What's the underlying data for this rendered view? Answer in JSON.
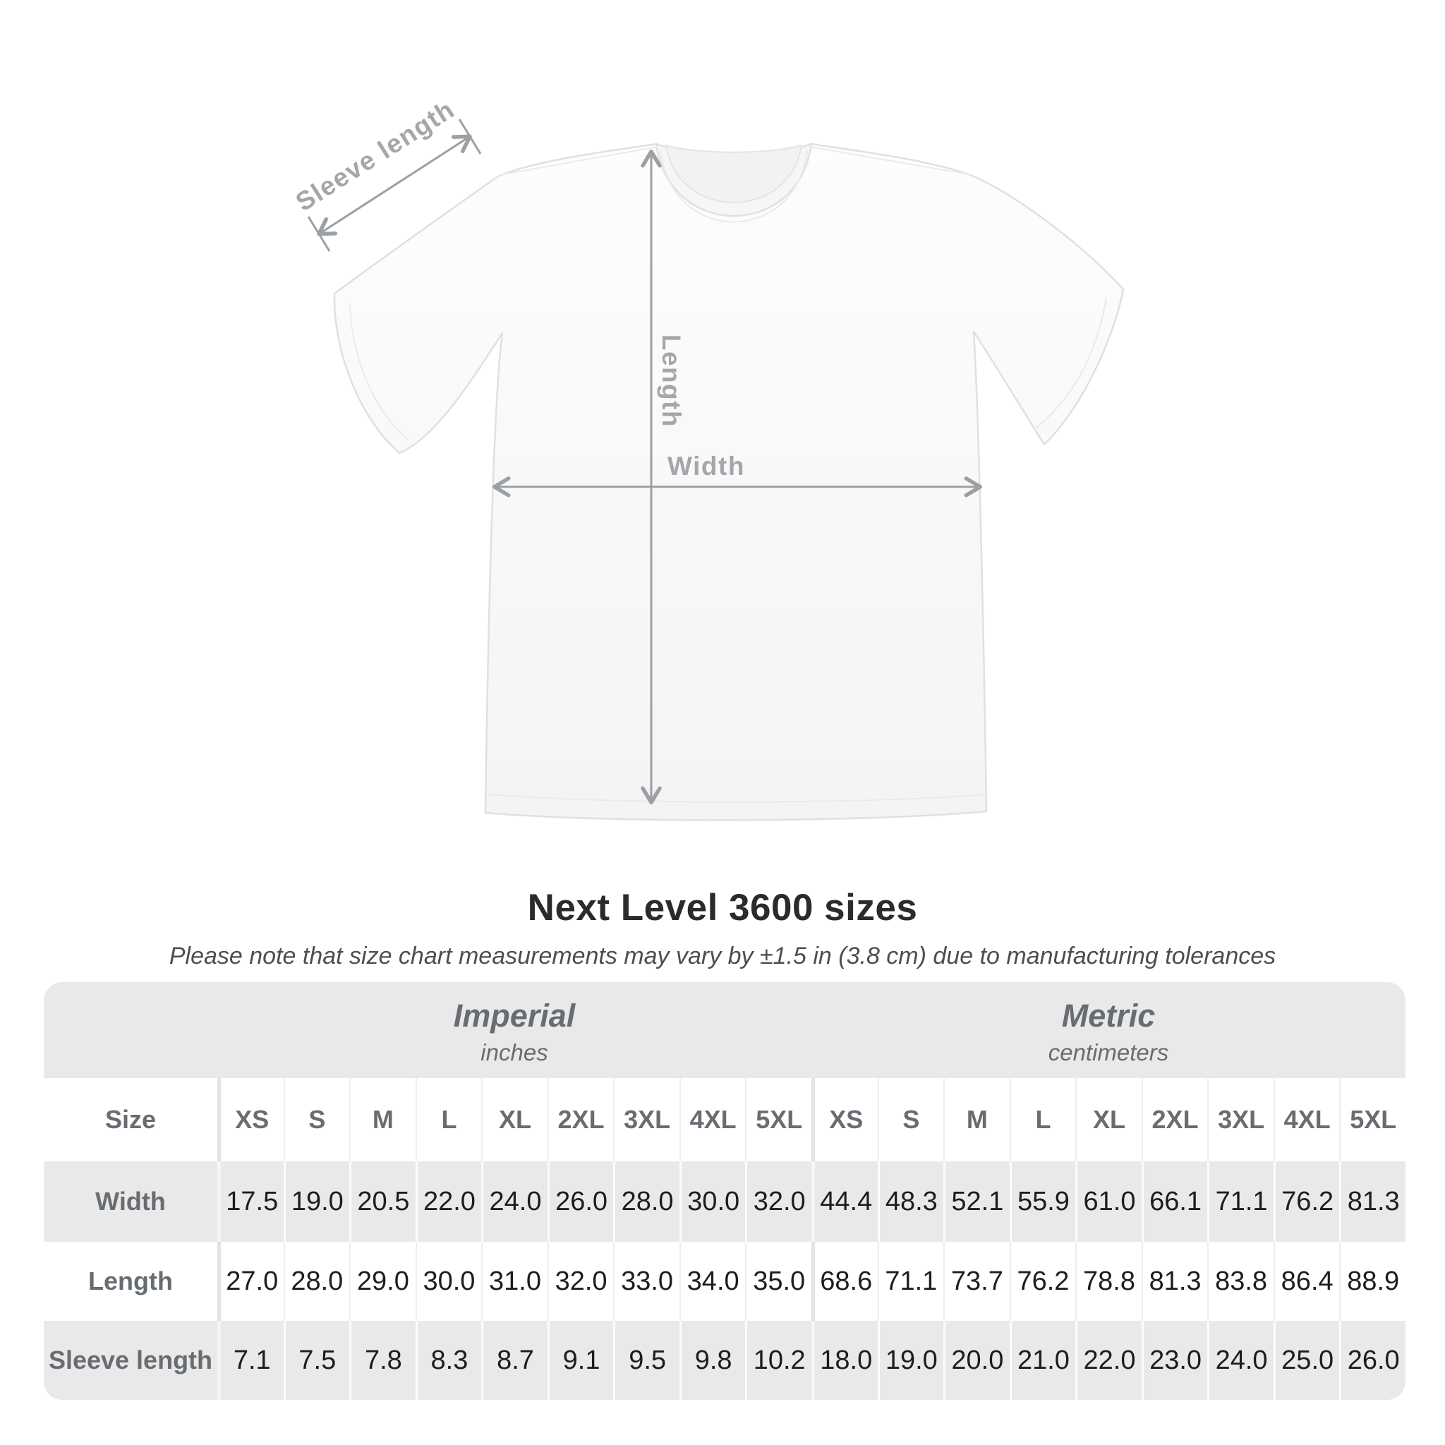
{
  "page": {
    "background": "#ffffff"
  },
  "diagram": {
    "labels": {
      "sleeve": "Sleeve length",
      "length": "Length",
      "width": "Width"
    },
    "arrow_color": "#9ca0a3",
    "label_color": "#a3a7aa",
    "shirt_fill": "#f9f9fa",
    "shirt_outline": "#dfe0e2"
  },
  "header": {
    "title": "Next Level 3600 sizes",
    "subtitle": "Please note that size chart measurements may vary by ±1.5 in (3.8 cm) due to manufacturing tolerances"
  },
  "chart_data": {
    "type": "table",
    "title": "Next Level 3600 sizes",
    "corner_label": "Size",
    "unit_groups": [
      {
        "label": "Imperial",
        "sublabel": "inches",
        "sizes": [
          "XS",
          "S",
          "M",
          "L",
          "XL",
          "2XL",
          "3XL",
          "4XL",
          "5XL"
        ]
      },
      {
        "label": "Metric",
        "sublabel": "centimeters",
        "sizes": [
          "XS",
          "S",
          "M",
          "L",
          "XL",
          "2XL",
          "3XL",
          "4XL",
          "5XL"
        ]
      }
    ],
    "measurements": [
      {
        "label": "Width",
        "imperial": [
          "17.5",
          "19.0",
          "20.5",
          "22.0",
          "24.0",
          "26.0",
          "28.0",
          "30.0",
          "32.0"
        ],
        "metric": [
          "44.4",
          "48.3",
          "52.1",
          "55.9",
          "61.0",
          "66.1",
          "71.1",
          "76.2",
          "81.3"
        ]
      },
      {
        "label": "Length",
        "imperial": [
          "27.0",
          "28.0",
          "29.0",
          "30.0",
          "31.0",
          "32.0",
          "33.0",
          "34.0",
          "35.0"
        ],
        "metric": [
          "68.6",
          "71.1",
          "73.7",
          "76.2",
          "78.8",
          "81.3",
          "83.8",
          "86.4",
          "88.9"
        ]
      },
      {
        "label": "Sleeve length",
        "imperial": [
          "7.1",
          "7.5",
          "7.8",
          "8.3",
          "8.7",
          "9.1",
          "9.5",
          "9.8",
          "10.2"
        ],
        "metric": [
          "18.0",
          "19.0",
          "20.0",
          "21.0",
          "22.0",
          "23.0",
          "24.0",
          "25.0",
          "26.0"
        ]
      }
    ]
  },
  "colors": {
    "row_gray": "#e9e9e9",
    "header_text": "#676d72",
    "value_text": "#1d1d1d",
    "title_text": "#2b2b2b",
    "subtitle_text": "#4e4e4e",
    "dim_label": "#a3a7aa",
    "arrow": "#9ca0a3"
  }
}
